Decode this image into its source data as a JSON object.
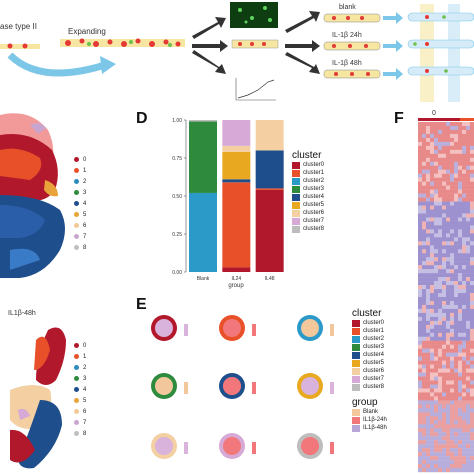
{
  "panels": {
    "D": "D",
    "E": "E",
    "F": "F"
  },
  "panelA": {
    "title_fragment": "ase type II",
    "expanding_label": "Expanding"
  },
  "conditions": [
    "blank",
    "IL-1β 24h",
    "IL-1β 48h"
  ],
  "umap_top": {
    "legend": [
      "0",
      "1",
      "2",
      "3",
      "4",
      "5",
      "6",
      "7",
      "8"
    ],
    "colors": [
      "#b2182b",
      "#e8502a",
      "#2b8cbe",
      "#2e8b3e",
      "#1f4e8c",
      "#e8a33a",
      "#f2c996",
      "#c9a6cf",
      "#bfbfbf"
    ]
  },
  "umap_bottom": {
    "title": "IL1β-48h",
    "legend": [
      "0",
      "1",
      "2",
      "3",
      "4",
      "5",
      "6",
      "7",
      "8"
    ]
  },
  "chart_data": {
    "type": "bar",
    "stacked": true,
    "categories": [
      "Blank",
      "IL24",
      "IL48"
    ],
    "xlabel": "group",
    "ylabel": "",
    "ylim": [
      0,
      1.0
    ],
    "yticks": [
      "0.00",
      "0.25",
      "0.50",
      "0.75",
      "1.00"
    ],
    "legend_title": "cluster",
    "series": [
      {
        "name": "cluster0",
        "color": "#b2182b",
        "values": [
          0.0,
          0.03,
          0.54
        ]
      },
      {
        "name": "cluster1",
        "color": "#e8502a",
        "values": [
          0.0,
          0.56,
          0.01
        ]
      },
      {
        "name": "cluster2",
        "color": "#2b9ac8",
        "values": [
          0.52,
          0.0,
          0.0
        ]
      },
      {
        "name": "cluster3",
        "color": "#2e8b3e",
        "values": [
          0.47,
          0.0,
          0.0
        ]
      },
      {
        "name": "cluster4",
        "color": "#1f4e8c",
        "values": [
          0.0,
          0.02,
          0.25
        ]
      },
      {
        "name": "cluster5",
        "color": "#e8a920",
        "values": [
          0.0,
          0.18,
          0.0
        ]
      },
      {
        "name": "cluster6",
        "color": "#f3cfa2",
        "values": [
          0.0,
          0.04,
          0.2
        ]
      },
      {
        "name": "cluster7",
        "color": "#d6a9d6",
        "values": [
          0.0,
          0.17,
          0.0
        ]
      },
      {
        "name": "cluster8",
        "color": "#bdbdbd",
        "values": [
          0.01,
          0.0,
          0.0
        ]
      }
    ]
  },
  "panelE": {
    "legend_cluster_title": "cluster",
    "legend_cluster": [
      "cluster0",
      "cluster1",
      "cluster2",
      "cluster3",
      "cluster4",
      "cluster5",
      "cluster6",
      "cluster7",
      "cluster8"
    ],
    "legend_cluster_colors": [
      "#b2182b",
      "#e8502a",
      "#2b9ac8",
      "#2e8b3e",
      "#1f4e8c",
      "#e8a920",
      "#f3cfa2",
      "#d6a9d6",
      "#bdbdbd"
    ],
    "legend_group_title": "group",
    "legend_group": [
      "Blank",
      "IL1β-24h",
      "IL1β-48h"
    ],
    "legend_group_colors": [
      "#f3c79c",
      "#f2777a",
      "#b7a7d8"
    ],
    "donuts": [
      {
        "ring": "#b2182b",
        "fill": "#d9b3dc",
        "pie": 0.0
      },
      {
        "ring": "#e8502a",
        "fill": "#f2777a",
        "pie": 1.0
      },
      {
        "ring": "#2b9ac8",
        "fill": "#f3c79c",
        "pie": 1.0
      },
      {
        "ring": "#2e8b3e",
        "fill": "#f3c79c",
        "pie": 1.0
      },
      {
        "ring": "#1f4e8c",
        "fill": "#f2777a",
        "pie": 0.9
      },
      {
        "ring": "#e8a920",
        "fill": "#d9b3dc",
        "pie": 0.0
      },
      {
        "ring": "#f3cfa2",
        "fill": "#d9b3dc",
        "pie": 0.0
      },
      {
        "ring": "#d6a9d6",
        "fill": "#f2777a",
        "pie": 1.0
      },
      {
        "ring": "#bdbdbd",
        "fill": "#f2777a",
        "pie": 0.75
      }
    ]
  },
  "heatmap": {
    "column_label": "0"
  }
}
